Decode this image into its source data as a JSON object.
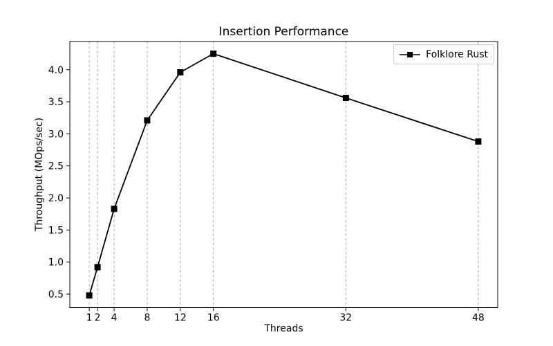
{
  "chart_data": {
    "type": "line",
    "title": "Insertion Performance",
    "xlabel": "Threads",
    "ylabel": "Throughput (MOps/sec)",
    "x": [
      1,
      2,
      4,
      8,
      12,
      16,
      32,
      48
    ],
    "series": [
      {
        "name": "Folklore Rust",
        "values": [
          0.48,
          0.92,
          1.83,
          3.21,
          3.96,
          4.25,
          3.56,
          2.88
        ],
        "color": "#000000",
        "marker": "square"
      }
    ],
    "x_ticks": [
      1,
      2,
      4,
      8,
      12,
      16,
      32,
      48
    ],
    "y_ticks": [
      0.5,
      1.0,
      1.5,
      2.0,
      2.5,
      3.0,
      3.5,
      4.0
    ],
    "xlim": [
      -1.35,
      50.35
    ],
    "ylim": [
      0.29,
      4.44
    ],
    "grid": "vertical-dashed",
    "grid_color": "#b0b0b0",
    "axis_color": "#000000",
    "tick_label_color": "#000000",
    "background_color": "#ffffff",
    "legend": {
      "position": "upper right",
      "entries": [
        "Folklore Rust"
      ]
    }
  }
}
